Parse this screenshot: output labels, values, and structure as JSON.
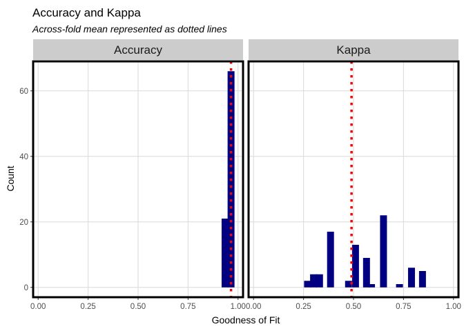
{
  "chart_data": {
    "type": "bar",
    "title": "Accuracy and Kappa",
    "subtitle": "Across-fold mean represented as dotted lines",
    "xlabel": "Goodness of Fit",
    "ylabel": "Count",
    "xlim": [
      -0.025,
      1.025
    ],
    "ylim": [
      -3,
      69
    ],
    "x_ticks": [
      0.0,
      0.25,
      0.5,
      0.75,
      1.0
    ],
    "x_tick_labels": [
      "0.00",
      "0.25",
      "0.50",
      "0.75",
      "1.00"
    ],
    "y_ticks": [
      0,
      20,
      40,
      60
    ],
    "y_tick_labels": [
      "0",
      "20",
      "40",
      "60"
    ],
    "bin_width": 0.0345,
    "grid": true,
    "bar_color": "#000080",
    "mean_line_color": "#ff0000",
    "panel_border_color": "#000000",
    "strip_fill": "#cccccc",
    "grid_color": "#d9d9d9",
    "panels": [
      {
        "label": "Accuracy",
        "mean": 0.965,
        "bins": [
          {
            "x": 0.935,
            "count": 21
          },
          {
            "x": 0.965,
            "count": 66
          }
        ]
      },
      {
        "label": "Kappa",
        "mean": 0.49,
        "bins": [
          {
            "x": 0.27,
            "count": 2
          },
          {
            "x": 0.3,
            "count": 4
          },
          {
            "x": 0.33,
            "count": 4
          },
          {
            "x": 0.385,
            "count": 17
          },
          {
            "x": 0.475,
            "count": 2
          },
          {
            "x": 0.51,
            "count": 13
          },
          {
            "x": 0.565,
            "count": 9
          },
          {
            "x": 0.59,
            "count": 1
          },
          {
            "x": 0.65,
            "count": 22
          },
          {
            "x": 0.73,
            "count": 1
          },
          {
            "x": 0.79,
            "count": 6
          },
          {
            "x": 0.845,
            "count": 5
          }
        ]
      }
    ]
  }
}
